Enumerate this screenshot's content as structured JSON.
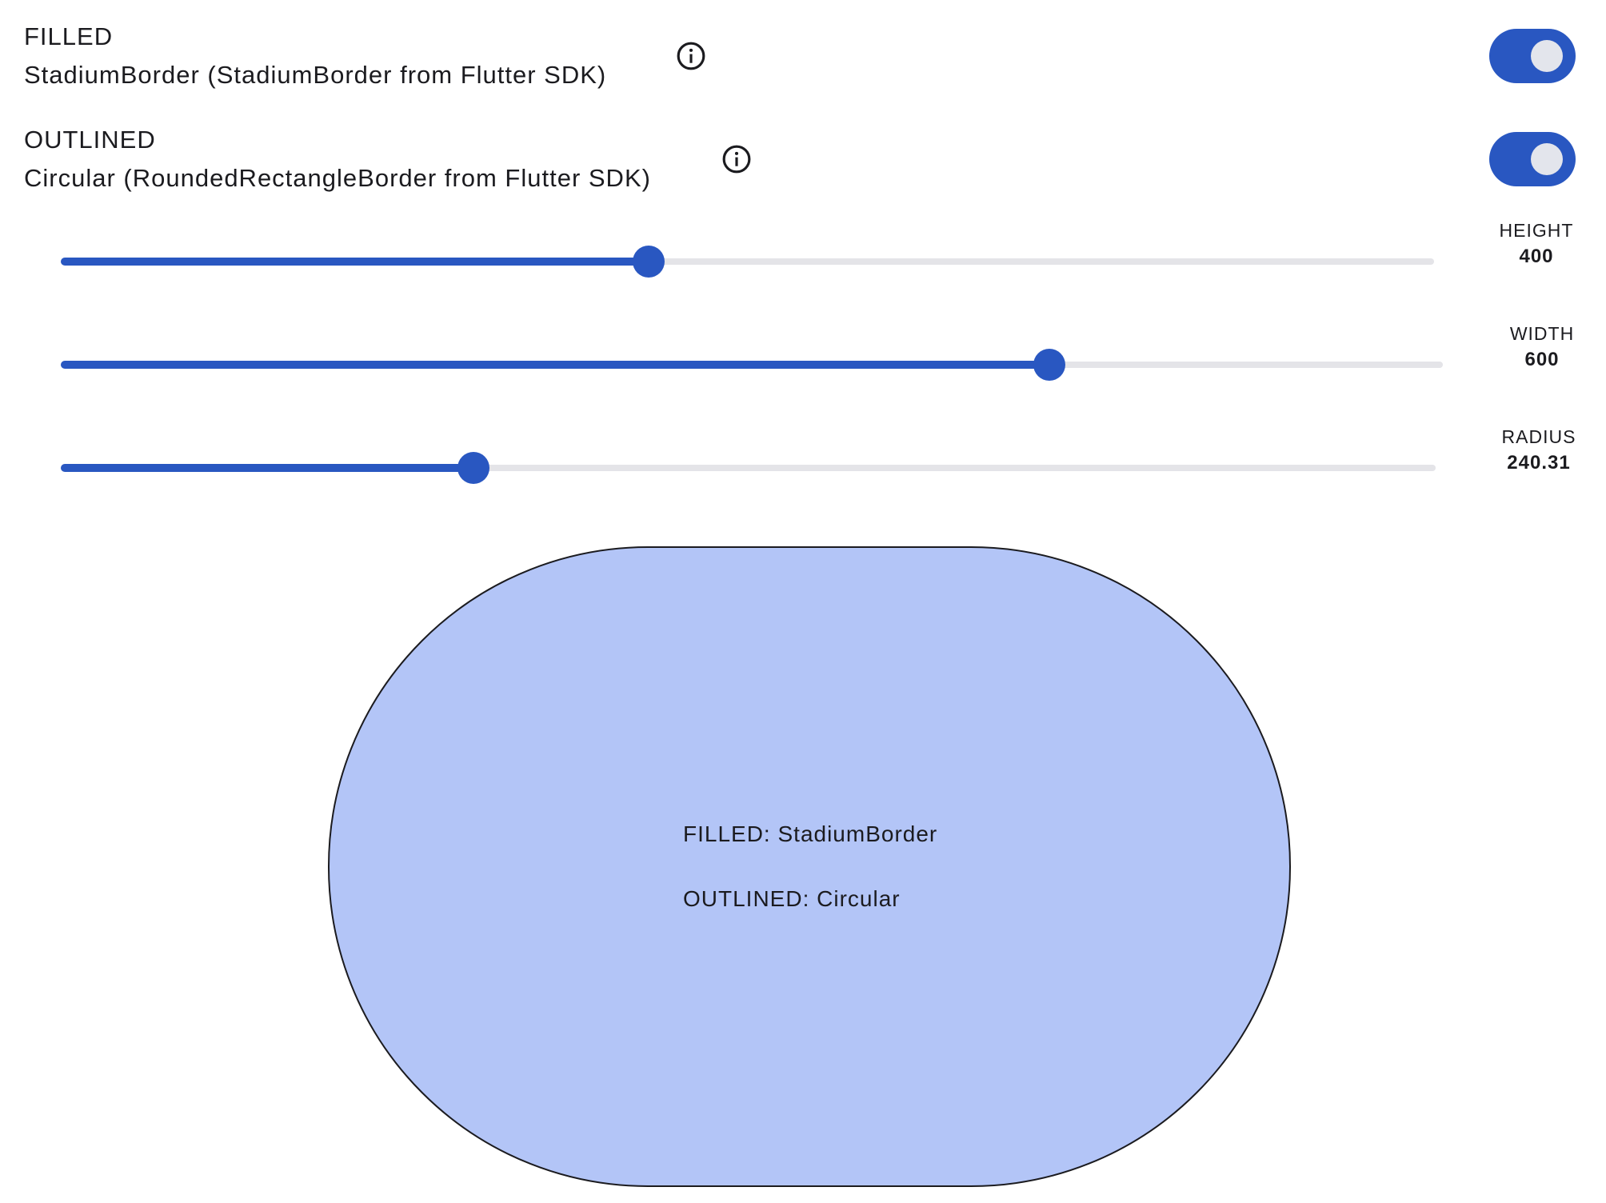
{
  "filled": {
    "title": "FILLED",
    "description": "StadiumBorder (StadiumBorder from Flutter SDK)",
    "info_icon": "info-circle-icon",
    "toggle_on": true
  },
  "outlined": {
    "title": "OUTLINED",
    "description": "Circular (RoundedRectangleBorder from Flutter SDK)",
    "info_icon": "info-circle-icon",
    "toggle_on": true
  },
  "sliders": {
    "height": {
      "label": "HEIGHT",
      "value": "400",
      "fraction": 0.428
    },
    "width": {
      "label": "WIDTH",
      "value": "600",
      "fraction": 0.715
    },
    "radius": {
      "label": "RADIUS",
      "value": "240.31",
      "fraction": 0.3
    }
  },
  "preview": {
    "filled_text": "FILLED: StadiumBorder",
    "outlined_text": "OUTLINED: Circular",
    "fill_color": "#b3c5f7",
    "border_color": "#1b1b1f"
  },
  "colors": {
    "accent": "#2957c1",
    "track": "#e4e4e8",
    "knob": "#e3e5ec"
  }
}
